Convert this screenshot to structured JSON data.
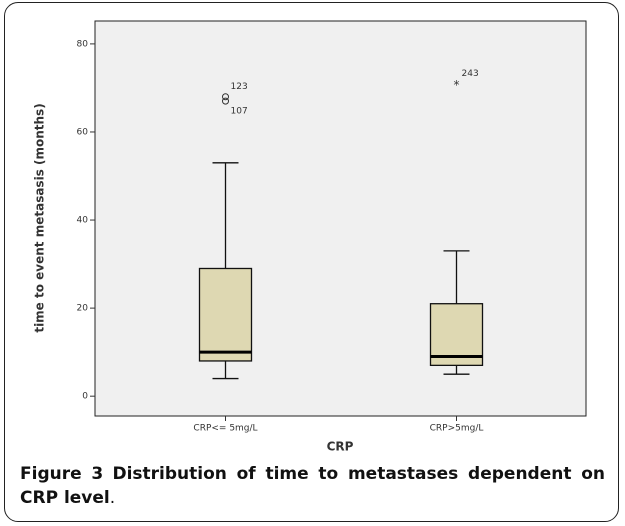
{
  "chart_data": {
    "type": "box",
    "x_label": "CRP",
    "y_label": "time to event metasasis (months)",
    "categories": [
      "CRP<= 5mg/L",
      "CRP>5mg/L"
    ],
    "series": [
      {
        "whisker_low": 4,
        "q1": 8,
        "median": 10,
        "q3": 29,
        "whisker_high": 53,
        "outliers": [
          {
            "value": 68,
            "label": "123",
            "marker": "circle"
          },
          {
            "value": 67,
            "label": "107",
            "marker": "circle"
          }
        ]
      },
      {
        "whisker_low": 5,
        "q1": 7,
        "median": 9,
        "q3": 21,
        "whisker_high": 33,
        "outliers": [
          {
            "value": 71,
            "label": "243",
            "marker": "star"
          }
        ]
      }
    ],
    "color": "#ded8b2",
    "background": "#f0f0f0",
    "ylim": [
      -4.5,
      85.2
    ],
    "yticks": [
      0,
      20,
      40,
      60,
      80
    ]
  },
  "caption": {
    "label": "Figure 3",
    "text": "Distribution of time to metastases dependent on CRP level",
    "end": "."
  }
}
